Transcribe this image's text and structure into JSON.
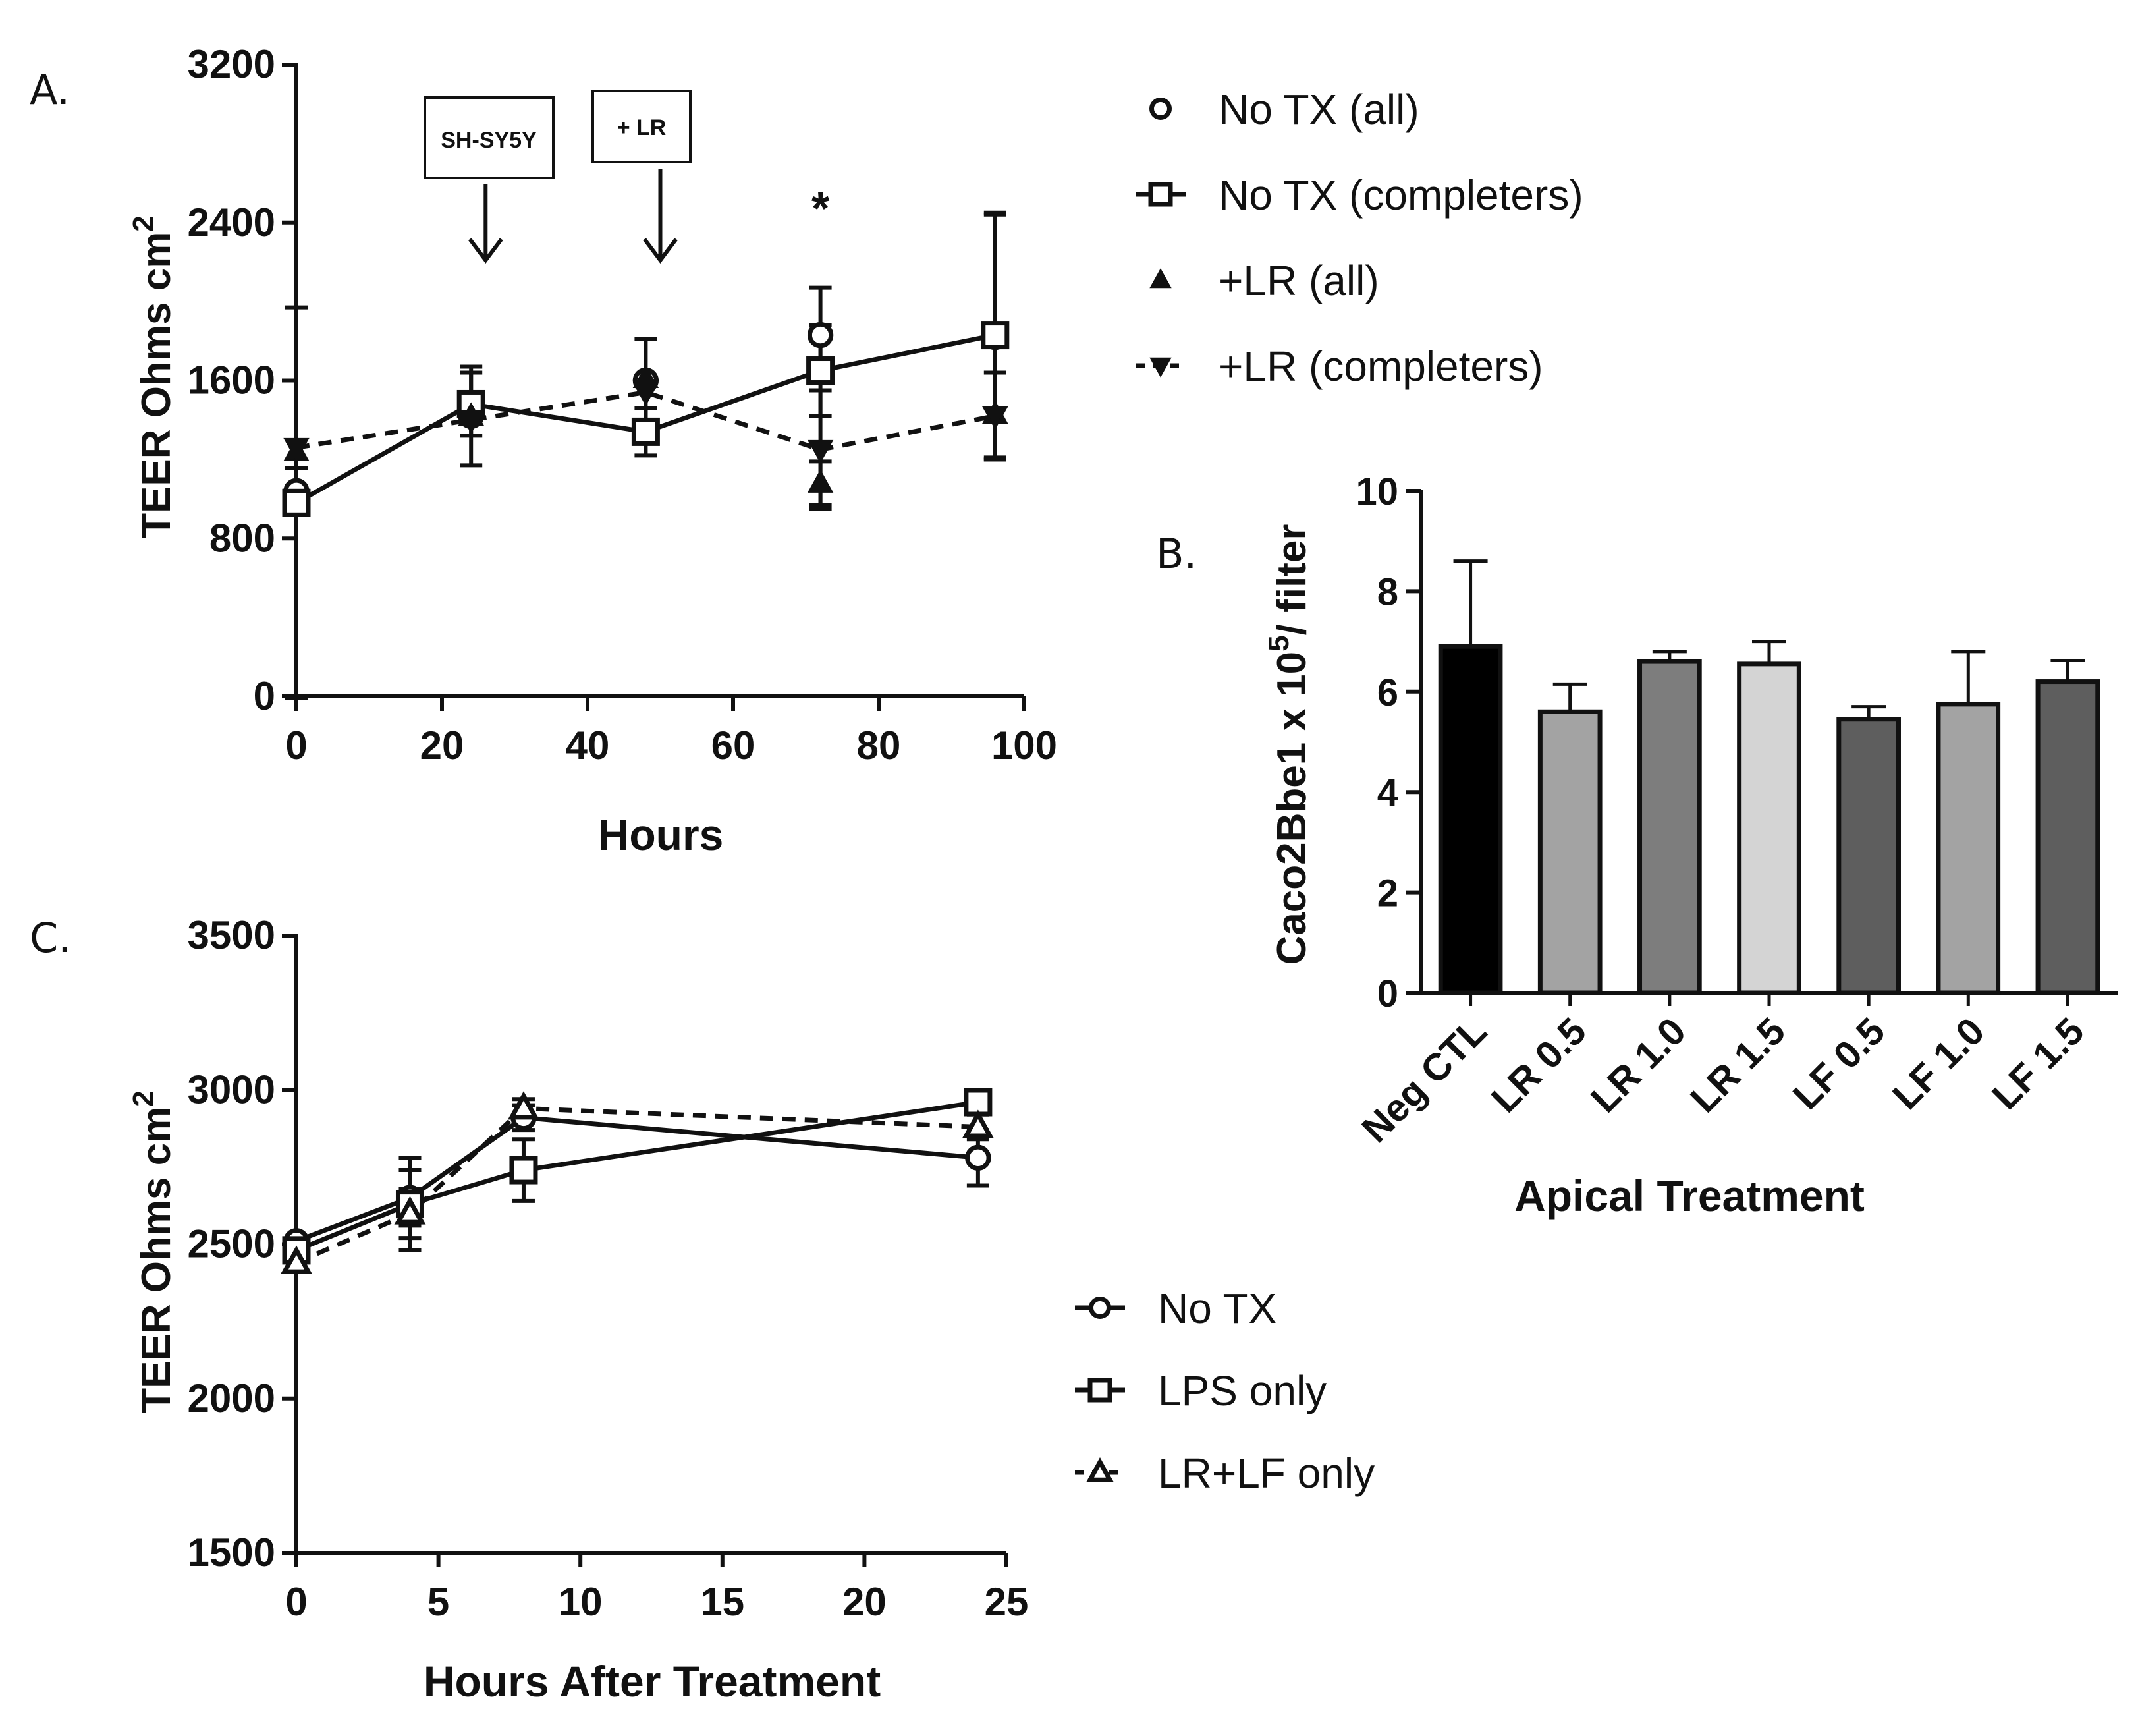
{
  "panel_labels": {
    "a": "A.",
    "b": "B.",
    "c": "C."
  },
  "colors": {
    "ink": "#111111",
    "bar_fills": [
      "#000000",
      "#a3a3a3",
      "#7d7d7d",
      "#d4d4d4",
      "#5e5e5e",
      "#a3a3a3",
      "#5e5e5e"
    ]
  },
  "chart_data": [
    {
      "id": "A",
      "type": "line",
      "xlabel": "Hours",
      "ylabel_main": "TEER Ohms cm",
      "ylabel_sup": "2",
      "xlim": [
        0,
        100
      ],
      "ylim": [
        0,
        3200
      ],
      "xticks": [
        0,
        20,
        40,
        60,
        80,
        100
      ],
      "yticks": [
        0,
        800,
        1600,
        2400,
        3200
      ],
      "annotations": [
        {
          "label": "SH-SY5Y",
          "at_x": 26
        },
        {
          "label": "+ LR",
          "at_x": 50
        },
        {
          "label": "*",
          "at_x": 72
        }
      ],
      "series": [
        {
          "name": "No TX (all)",
          "marker": "circle",
          "line": "none",
          "x": [
            0,
            24,
            48,
            72,
            96
          ],
          "y": [
            1040,
            1420,
            1600,
            1830,
            1820
          ],
          "err": [
            115,
            250,
            210,
            240,
            620
          ]
        },
        {
          "name": "No TX (completers)",
          "marker": "square",
          "line": "solid",
          "x": [
            0,
            24,
            48,
            72,
            96
          ],
          "y": [
            980,
            1480,
            1340,
            1650,
            1830
          ],
          "err": [
            990,
            160,
            120,
            230,
            620
          ]
        },
        {
          "name": "+LR (all)",
          "marker": "triangle-up",
          "line": "none",
          "x": [
            0,
            24,
            48,
            72,
            96
          ],
          "y": [
            1240,
            1420,
            1610,
            1080,
            1430
          ],
          "err": [
            0,
            0,
            0,
            110,
            0
          ]
        },
        {
          "name": "+LR (completers)",
          "marker": "triangle-down",
          "line": "dashed",
          "x": [
            0,
            24,
            48,
            72,
            96
          ],
          "y": [
            1260,
            1400,
            1540,
            1250,
            1420
          ],
          "err": [
            0,
            0,
            0,
            300,
            220
          ]
        }
      ]
    },
    {
      "id": "B",
      "type": "bar",
      "xlabel": "Apical Treatment",
      "ylabel_main": "Caco2Bbe1 x 10",
      "ylabel_sup": "5",
      "ylabel_tail": "/ filter",
      "ylim": [
        0,
        10
      ],
      "yticks": [
        0,
        2,
        4,
        6,
        8,
        10
      ],
      "categories": [
        "Neg CTL",
        "LR 0.5",
        "LR 1.0",
        "LR 1.5",
        "LF 0.5",
        "LF 1.0",
        "LF 1.5"
      ],
      "values": [
        6.9,
        5.6,
        6.6,
        6.55,
        5.45,
        5.75,
        6.2
      ],
      "err": [
        1.7,
        0.55,
        0.2,
        0.45,
        0.25,
        1.05,
        0.42
      ]
    },
    {
      "id": "C",
      "type": "line",
      "xlabel": "Hours After Treatment",
      "ylabel_main": "TEER Ohms cm",
      "ylabel_sup": "2",
      "xlim": [
        0,
        25
      ],
      "ylim": [
        1500,
        3500
      ],
      "xticks": [
        0,
        5,
        10,
        15,
        20,
        25
      ],
      "yticks": [
        1500,
        2000,
        2500,
        3000,
        3500
      ],
      "series": [
        {
          "name": "No TX",
          "marker": "circle",
          "line": "solid",
          "x": [
            0,
            4,
            8,
            24
          ],
          "y": [
            2510,
            2650,
            2910,
            2780
          ],
          "err": [
            0,
            90,
            40,
            90
          ]
        },
        {
          "name": "LPS only",
          "marker": "square",
          "line": "solid",
          "x": [
            0,
            4,
            8,
            24
          ],
          "y": [
            2480,
            2630,
            2740,
            2960
          ],
          "err": [
            0,
            150,
            100,
            30
          ]
        },
        {
          "name": "LR+LF only",
          "marker": "triangle-up",
          "line": "dashed",
          "x": [
            0,
            4,
            8,
            24
          ],
          "y": [
            2440,
            2600,
            2940,
            2880
          ],
          "err": [
            0,
            80,
            30,
            40
          ]
        }
      ]
    }
  ]
}
